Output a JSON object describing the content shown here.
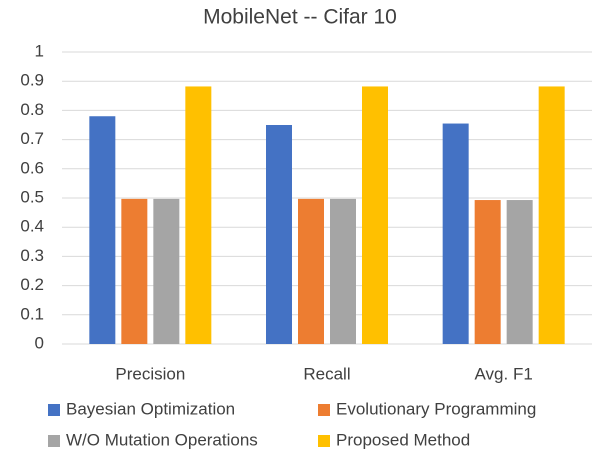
{
  "chart_data": {
    "type": "bar",
    "title": "MobileNet -- Cifar 10",
    "categories": [
      "Precision",
      "Recall",
      "Avg. F1"
    ],
    "series": [
      {
        "name": "Bayesian Optimization",
        "color": "#4472c4",
        "values": [
          0.78,
          0.75,
          0.755
        ]
      },
      {
        "name": "Evolutionary Programming",
        "color": "#ed7d31",
        "values": [
          0.497,
          0.497,
          0.493
        ]
      },
      {
        "name": "W/O Mutation Operations",
        "color": "#a5a5a5",
        "values": [
          0.497,
          0.497,
          0.493
        ]
      },
      {
        "name": "Proposed Method",
        "color": "#ffc000",
        "values": [
          0.882,
          0.882,
          0.882
        ]
      }
    ],
    "ylim": [
      0,
      1
    ],
    "yticks": [
      0,
      0.1,
      0.2,
      0.3,
      0.4,
      0.5,
      0.6,
      0.7,
      0.8,
      0.9,
      1
    ],
    "grid": true,
    "legend": "bottom"
  }
}
